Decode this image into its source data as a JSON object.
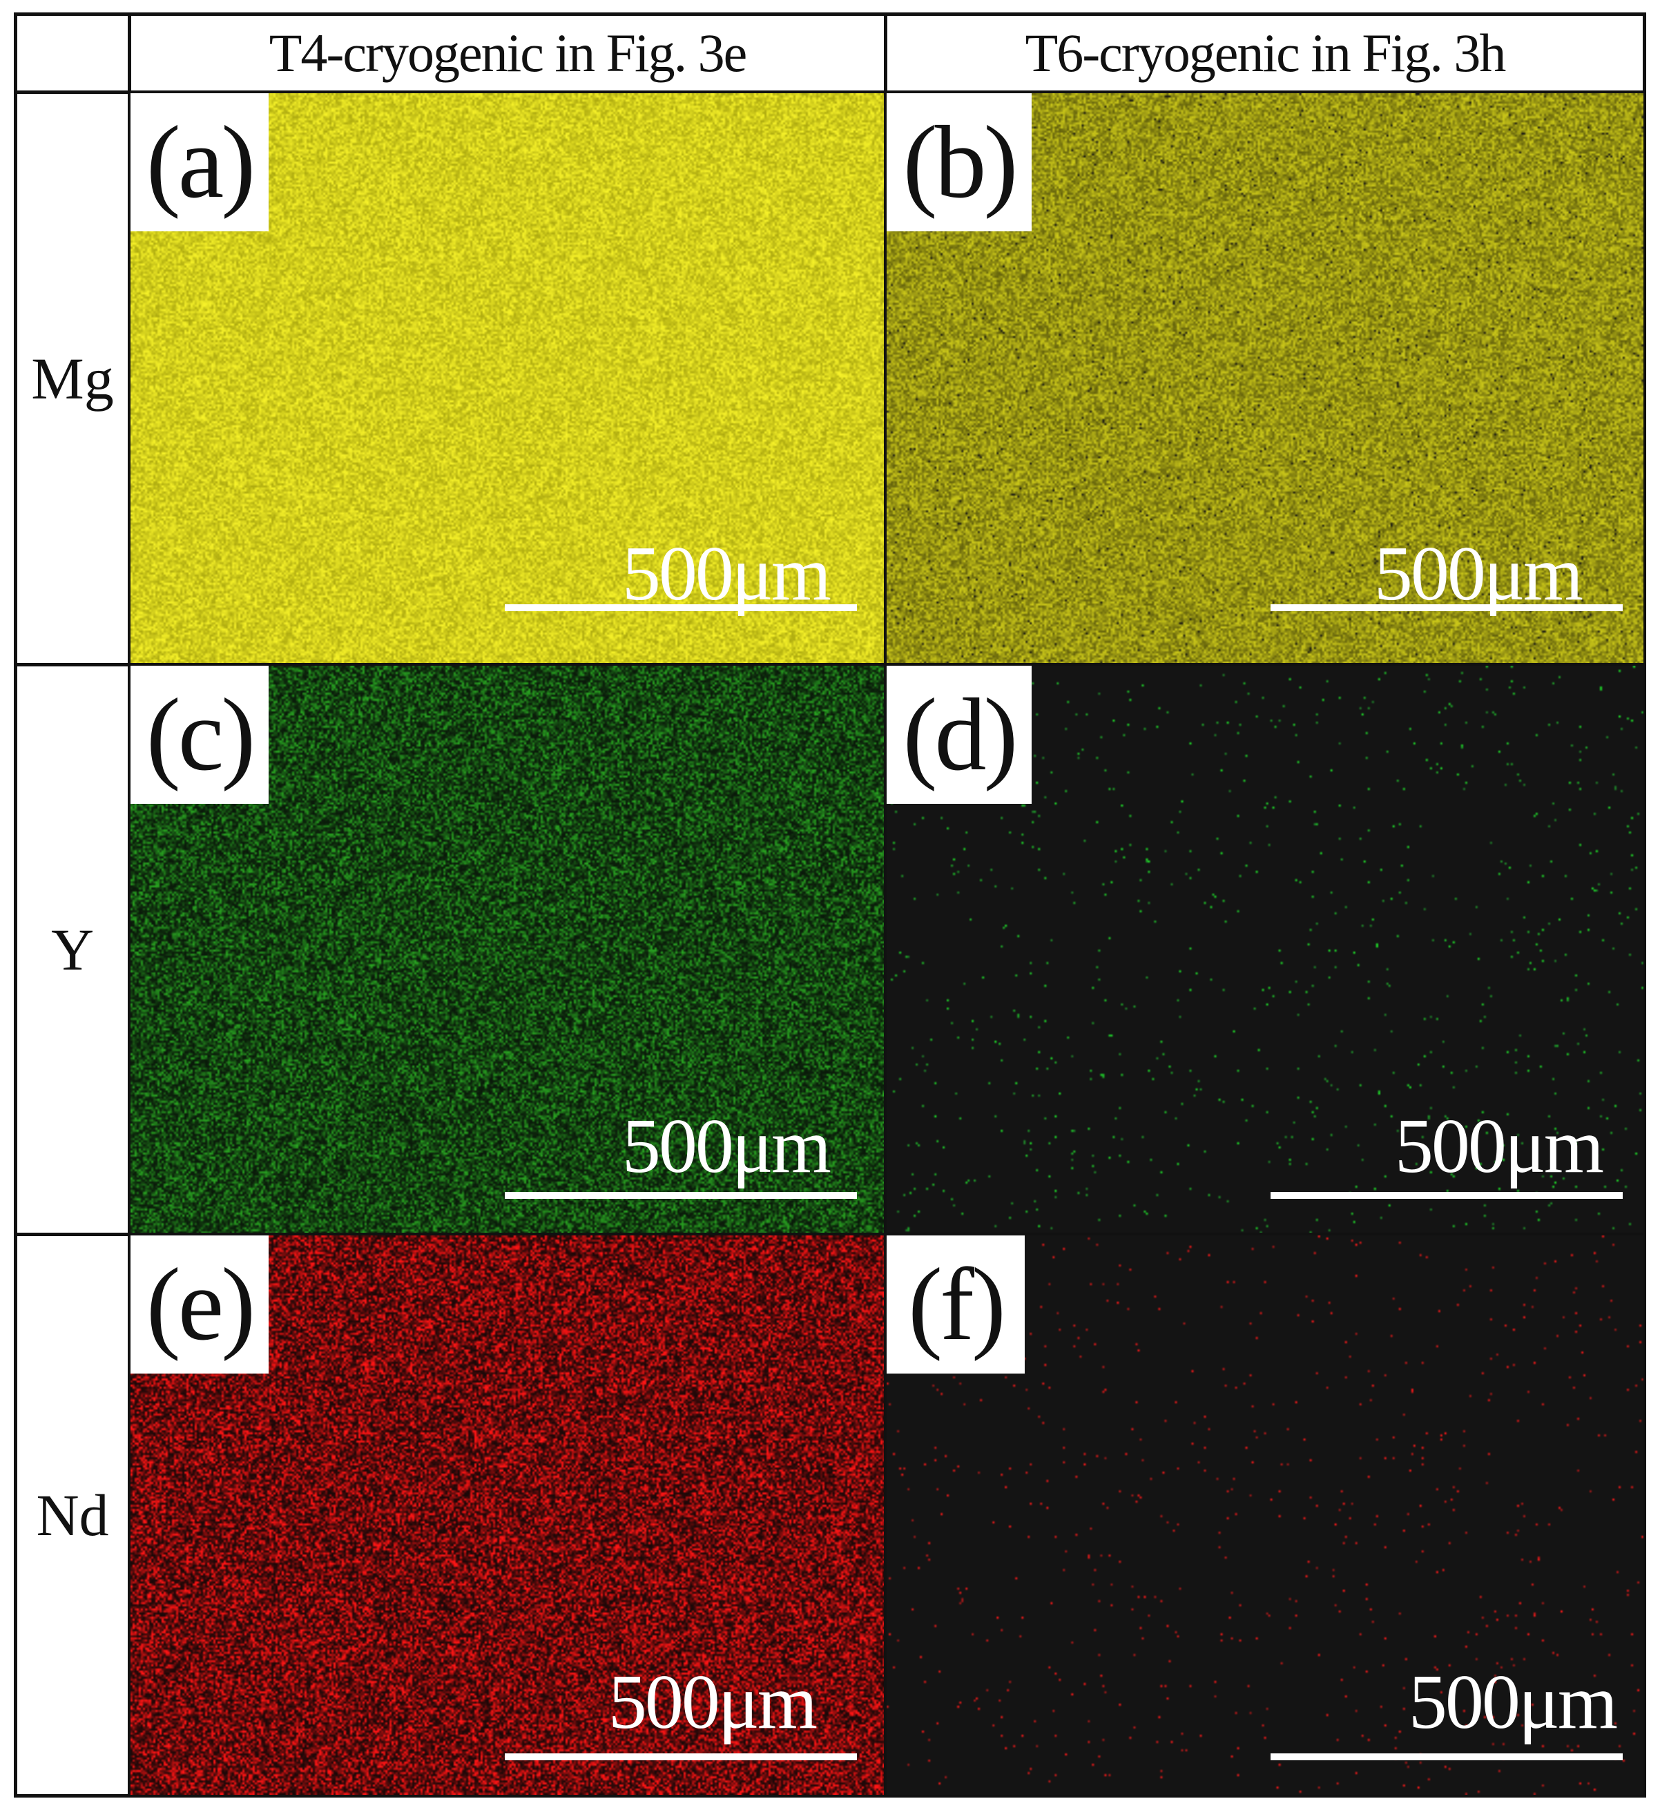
{
  "columns": [
    {
      "label": "T4-cryogenic in Fig. 3e"
    },
    {
      "label": "T6-cryogenic in Fig. 3h"
    }
  ],
  "rows": [
    {
      "label": "Mg"
    },
    {
      "label": "Y"
    },
    {
      "label": "Nd"
    }
  ],
  "panels": [
    {
      "tag": "(a)",
      "scale_bar": "500μm",
      "base_color": "#d8d41a",
      "style": "dense-yellow"
    },
    {
      "tag": "(b)",
      "scale_bar": "500μm",
      "base_color": "#b3b01c",
      "style": "dense-olive"
    },
    {
      "tag": "(c)",
      "scale_bar": "500μm",
      "base_color": "#1d5a14",
      "style": "dense-green"
    },
    {
      "tag": "(d)",
      "scale_bar": "500μm",
      "base_color": "#141414",
      "style": "sparse-green"
    },
    {
      "tag": "(e)",
      "scale_bar": "500μm",
      "base_color": "#5a0c0c",
      "style": "dense-red"
    },
    {
      "tag": "(f)",
      "scale_bar": "500μm",
      "base_color": "#141414",
      "style": "sparse-red"
    }
  ]
}
